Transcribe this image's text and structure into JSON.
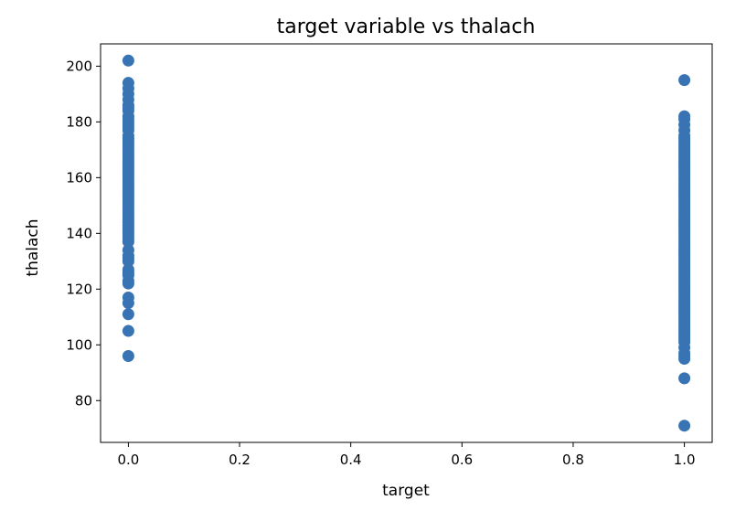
{
  "chart_data": {
    "type": "scatter",
    "title": "target variable vs thalach",
    "xlabel": "target",
    "ylabel": "thalach",
    "xlim": [
      -0.05,
      1.05
    ],
    "ylim": [
      65,
      208
    ],
    "x_ticks": [
      0.0,
      0.2,
      0.4,
      0.6,
      0.8,
      1.0
    ],
    "x_tick_labels": [
      "0.0",
      "0.2",
      "0.4",
      "0.6",
      "0.8",
      "1.0"
    ],
    "y_ticks": [
      80,
      100,
      120,
      140,
      160,
      180,
      200
    ],
    "y_tick_labels": [
      "80",
      "100",
      "120",
      "140",
      "160",
      "180",
      "200"
    ],
    "grid": false,
    "marker_color": "#3873b3",
    "series": [
      {
        "x": [
          0,
          0,
          0,
          0,
          0,
          0,
          0,
          0,
          0,
          0,
          0,
          0,
          0,
          0,
          0,
          0,
          0,
          0,
          0,
          0,
          0,
          0,
          0,
          0,
          0,
          0,
          0,
          0,
          0,
          0,
          0,
          0,
          0,
          0,
          0,
          0,
          0,
          0,
          0,
          0,
          0,
          0,
          0,
          0,
          0,
          0,
          0,
          0,
          0,
          0,
          0,
          0,
          0,
          0,
          0,
          0,
          0,
          0,
          0,
          0,
          0,
          0,
          0,
          0,
          0,
          0,
          0,
          1,
          1,
          1,
          1,
          1,
          1,
          1,
          1,
          1,
          1,
          1,
          1,
          1,
          1,
          1,
          1,
          1,
          1,
          1,
          1,
          1,
          1,
          1,
          1,
          1,
          1,
          1,
          1,
          1,
          1,
          1,
          1,
          1,
          1,
          1,
          1,
          1,
          1,
          1,
          1,
          1,
          1,
          1,
          1,
          1,
          1,
          1,
          1,
          1,
          1,
          1,
          1,
          1,
          1,
          1,
          1,
          1,
          1,
          1,
          1,
          1,
          1,
          1,
          1,
          1,
          1,
          1,
          1,
          1,
          1,
          1,
          1,
          1,
          1,
          1,
          1,
          1,
          1,
          1,
          1,
          1,
          1,
          1,
          1,
          1,
          1
        ],
        "y": [
          202,
          194,
          192,
          190,
          188,
          186,
          185,
          184,
          182,
          181,
          180,
          179,
          178,
          177,
          175,
          174,
          173,
          172,
          171,
          170,
          169,
          168,
          167,
          166,
          165,
          164,
          163,
          162,
          161,
          160,
          159,
          158,
          157,
          156,
          155,
          154,
          153,
          152,
          151,
          150,
          149,
          148,
          147,
          146,
          145,
          144,
          143,
          142,
          141,
          140,
          139,
          138,
          137,
          134,
          132,
          131,
          130,
          127,
          126,
          125,
          123,
          122,
          117,
          115,
          111,
          105,
          96,
          195,
          182,
          181,
          179,
          177,
          175,
          174,
          173,
          172,
          171,
          170,
          169,
          168,
          167,
          166,
          165,
          164,
          163,
          162,
          161,
          160,
          159,
          158,
          157,
          156,
          155,
          154,
          153,
          152,
          151,
          150,
          149,
          148,
          147,
          146,
          145,
          144,
          143,
          142,
          141,
          140,
          139,
          138,
          137,
          136,
          135,
          134,
          133,
          132,
          131,
          130,
          129,
          128,
          127,
          126,
          125,
          124,
          123,
          122,
          121,
          120,
          119,
          118,
          117,
          116,
          115,
          114,
          113,
          112,
          111,
          110,
          109,
          108,
          107,
          106,
          105,
          104,
          103,
          102,
          101,
          99,
          97,
          96,
          95,
          88,
          71
        ]
      }
    ]
  }
}
